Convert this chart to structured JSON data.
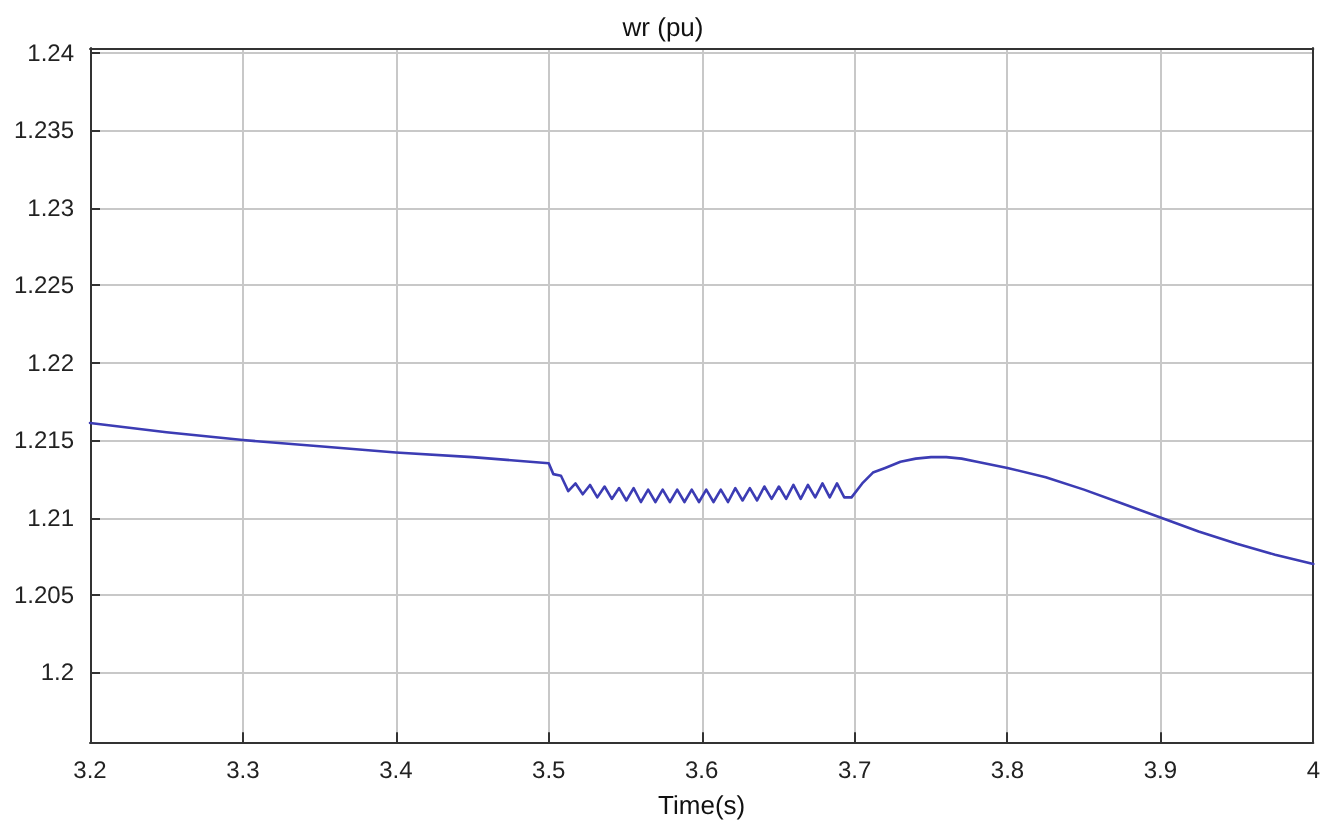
{
  "chart_data": {
    "type": "line",
    "title": "wr (pu)",
    "xlabel": "Time(s)",
    "xlim": [
      3.2,
      4
    ],
    "xticks": [
      3.2,
      3.3,
      3.4,
      3.5,
      3.6,
      3.7,
      3.8,
      3.9,
      4
    ],
    "ylim": [
      1.1955,
      1.2403
    ],
    "yticks": [
      1.2,
      1.205,
      1.21,
      1.215,
      1.22,
      1.225,
      1.23,
      1.235,
      1.24
    ],
    "grid": true,
    "marker": "none",
    "line_style": "solid",
    "series": [
      {
        "color": "#3c3cb4",
        "x": [
          3.2,
          3.25,
          3.3,
          3.35,
          3.4,
          3.45,
          3.5,
          3.503,
          3.508,
          3.51275,
          3.5175,
          3.52225,
          3.527,
          3.53175,
          3.5365,
          3.54125,
          3.546,
          3.55075,
          3.5555,
          3.56025,
          3.565,
          3.56975,
          3.5745,
          3.57925,
          3.584,
          3.58875,
          3.5935,
          3.59825,
          3.603,
          3.60775,
          3.6125,
          3.61725,
          3.622,
          3.62675,
          3.6315,
          3.63625,
          3.641,
          3.64575,
          3.6505,
          3.65525,
          3.66,
          3.66475,
          3.6695,
          3.67425,
          3.679,
          3.68375,
          3.6885,
          3.69325,
          3.698,
          3.705,
          3.712,
          3.72,
          3.73,
          3.74,
          3.75,
          3.76,
          3.77,
          3.78,
          3.8,
          3.825,
          3.85,
          3.875,
          3.9,
          3.925,
          3.95,
          3.975,
          4.0
        ],
        "values": [
          1.2161,
          1.2155,
          1.215,
          1.2146,
          1.2142,
          1.2139,
          1.2135,
          1.2128,
          1.2127,
          1.2117,
          1.2122,
          1.2115,
          1.2121,
          1.2113,
          1.212,
          1.2112,
          1.2119,
          1.2111,
          1.2119,
          1.211,
          1.2118,
          1.211,
          1.2118,
          1.211,
          1.2118,
          1.211,
          1.2118,
          1.211,
          1.2118,
          1.211,
          1.2118,
          1.211,
          1.2119,
          1.2111,
          1.2119,
          1.2111,
          1.212,
          1.2112,
          1.212,
          1.2112,
          1.2121,
          1.2112,
          1.2121,
          1.2113,
          1.2122,
          1.2113,
          1.2122,
          1.2113,
          1.2113,
          1.2122,
          1.2129,
          1.2132,
          1.2136,
          1.2138,
          1.2139,
          1.2139,
          1.2138,
          1.2136,
          1.2132,
          1.2126,
          1.2118,
          1.2109,
          1.21,
          1.2091,
          1.2083,
          1.2076,
          1.207
        ]
      }
    ]
  }
}
